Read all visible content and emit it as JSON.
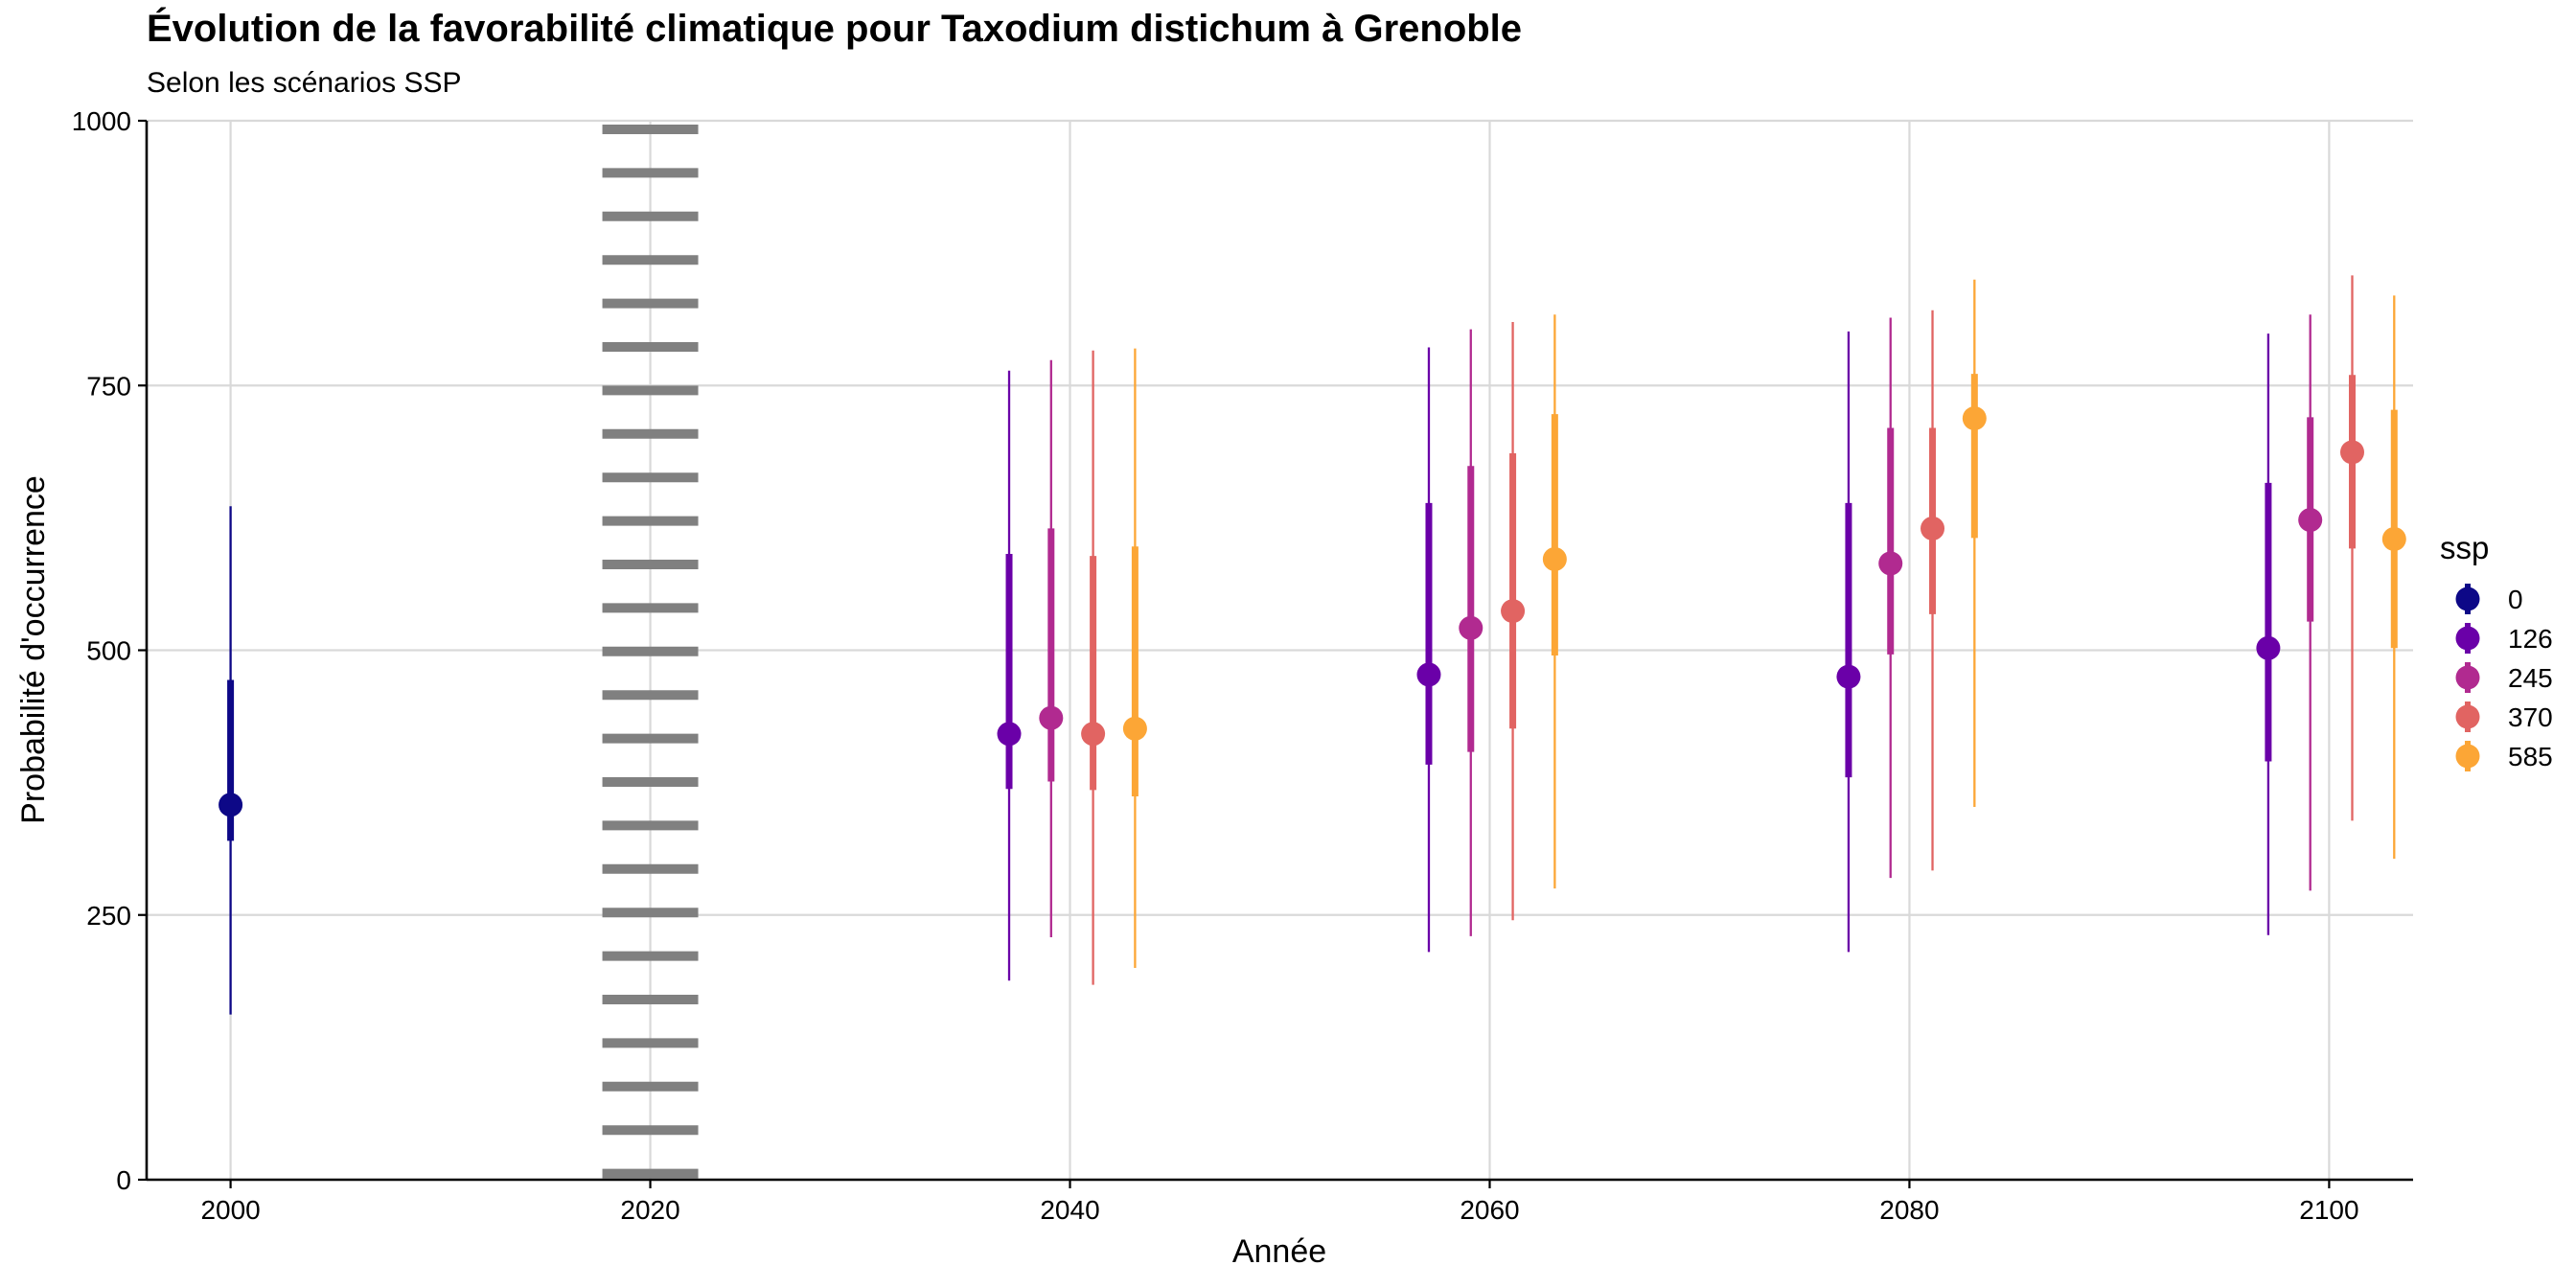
{
  "chart_data": {
    "type": "point-range",
    "title": "Évolution de la favorabilité climatique pour Taxodium distichum à Grenoble",
    "subtitle": "Selon les scénarios SSP",
    "xlabel": "Année",
    "ylabel": "Probabilité d'occurrence",
    "xlim": [
      1996,
      2104
    ],
    "ylim": [
      0,
      1000
    ],
    "x_ticks": [
      2000,
      2020,
      2040,
      2060,
      2080,
      2100
    ],
    "y_ticks": [
      0,
      250,
      500,
      750,
      1000
    ],
    "grid": true,
    "reference_line": {
      "x": 2020,
      "style": "dotted"
    },
    "legend": {
      "title": "ssp",
      "placement": "right"
    },
    "series": [
      {
        "name": "0",
        "color": "#0d0887",
        "points": [
          {
            "x": 2000,
            "y": 354,
            "inner": [
              320,
              472
            ],
            "outer": [
              156,
              636
            ]
          }
        ]
      },
      {
        "name": "126",
        "color": "#6a00a8",
        "points": [
          {
            "x": 2040,
            "y": 421,
            "inner": [
              369,
              591
            ],
            "outer": [
              188,
              764
            ]
          },
          {
            "x": 2060,
            "y": 477,
            "inner": [
              392,
              639
            ],
            "outer": [
              215,
              786
            ]
          },
          {
            "x": 2080,
            "y": 475,
            "inner": [
              380,
              639
            ],
            "outer": [
              215,
              801
            ]
          },
          {
            "x": 2100,
            "y": 502,
            "inner": [
              395,
              658
            ],
            "outer": [
              231,
              799
            ]
          }
        ]
      },
      {
        "name": "245",
        "color": "#b12a90",
        "points": [
          {
            "x": 2040,
            "y": 436,
            "inner": [
              376,
              615
            ],
            "outer": [
              229,
              774
            ]
          },
          {
            "x": 2060,
            "y": 521,
            "inner": [
              404,
              674
            ],
            "outer": [
              230,
              803
            ]
          },
          {
            "x": 2080,
            "y": 582,
            "inner": [
              496,
              710
            ],
            "outer": [
              285,
              814
            ]
          },
          {
            "x": 2100,
            "y": 623,
            "inner": [
              527,
              720
            ],
            "outer": [
              273,
              817
            ]
          }
        ]
      },
      {
        "name": "370",
        "color": "#e16462",
        "points": [
          {
            "x": 2040,
            "y": 421,
            "inner": [
              368,
              589
            ],
            "outer": [
              184,
              783
            ]
          },
          {
            "x": 2060,
            "y": 537,
            "inner": [
              426,
              686
            ],
            "outer": [
              245,
              810
            ]
          },
          {
            "x": 2080,
            "y": 615,
            "inner": [
              534,
              710
            ],
            "outer": [
              292,
              821
            ]
          },
          {
            "x": 2100,
            "y": 687,
            "inner": [
              596,
              760
            ],
            "outer": [
              339,
              854
            ]
          }
        ]
      },
      {
        "name": "585",
        "color": "#fca636",
        "points": [
          {
            "x": 2040,
            "y": 426,
            "inner": [
              362,
              598
            ],
            "outer": [
              200,
              785
            ]
          },
          {
            "x": 2060,
            "y": 586,
            "inner": [
              495,
              723
            ],
            "outer": [
              275,
              817
            ]
          },
          {
            "x": 2080,
            "y": 719,
            "inner": [
              606,
              761
            ],
            "outer": [
              352,
              850
            ]
          },
          {
            "x": 2100,
            "y": 605,
            "inner": [
              502,
              727
            ],
            "outer": [
              303,
              835
            ]
          }
        ]
      }
    ]
  }
}
